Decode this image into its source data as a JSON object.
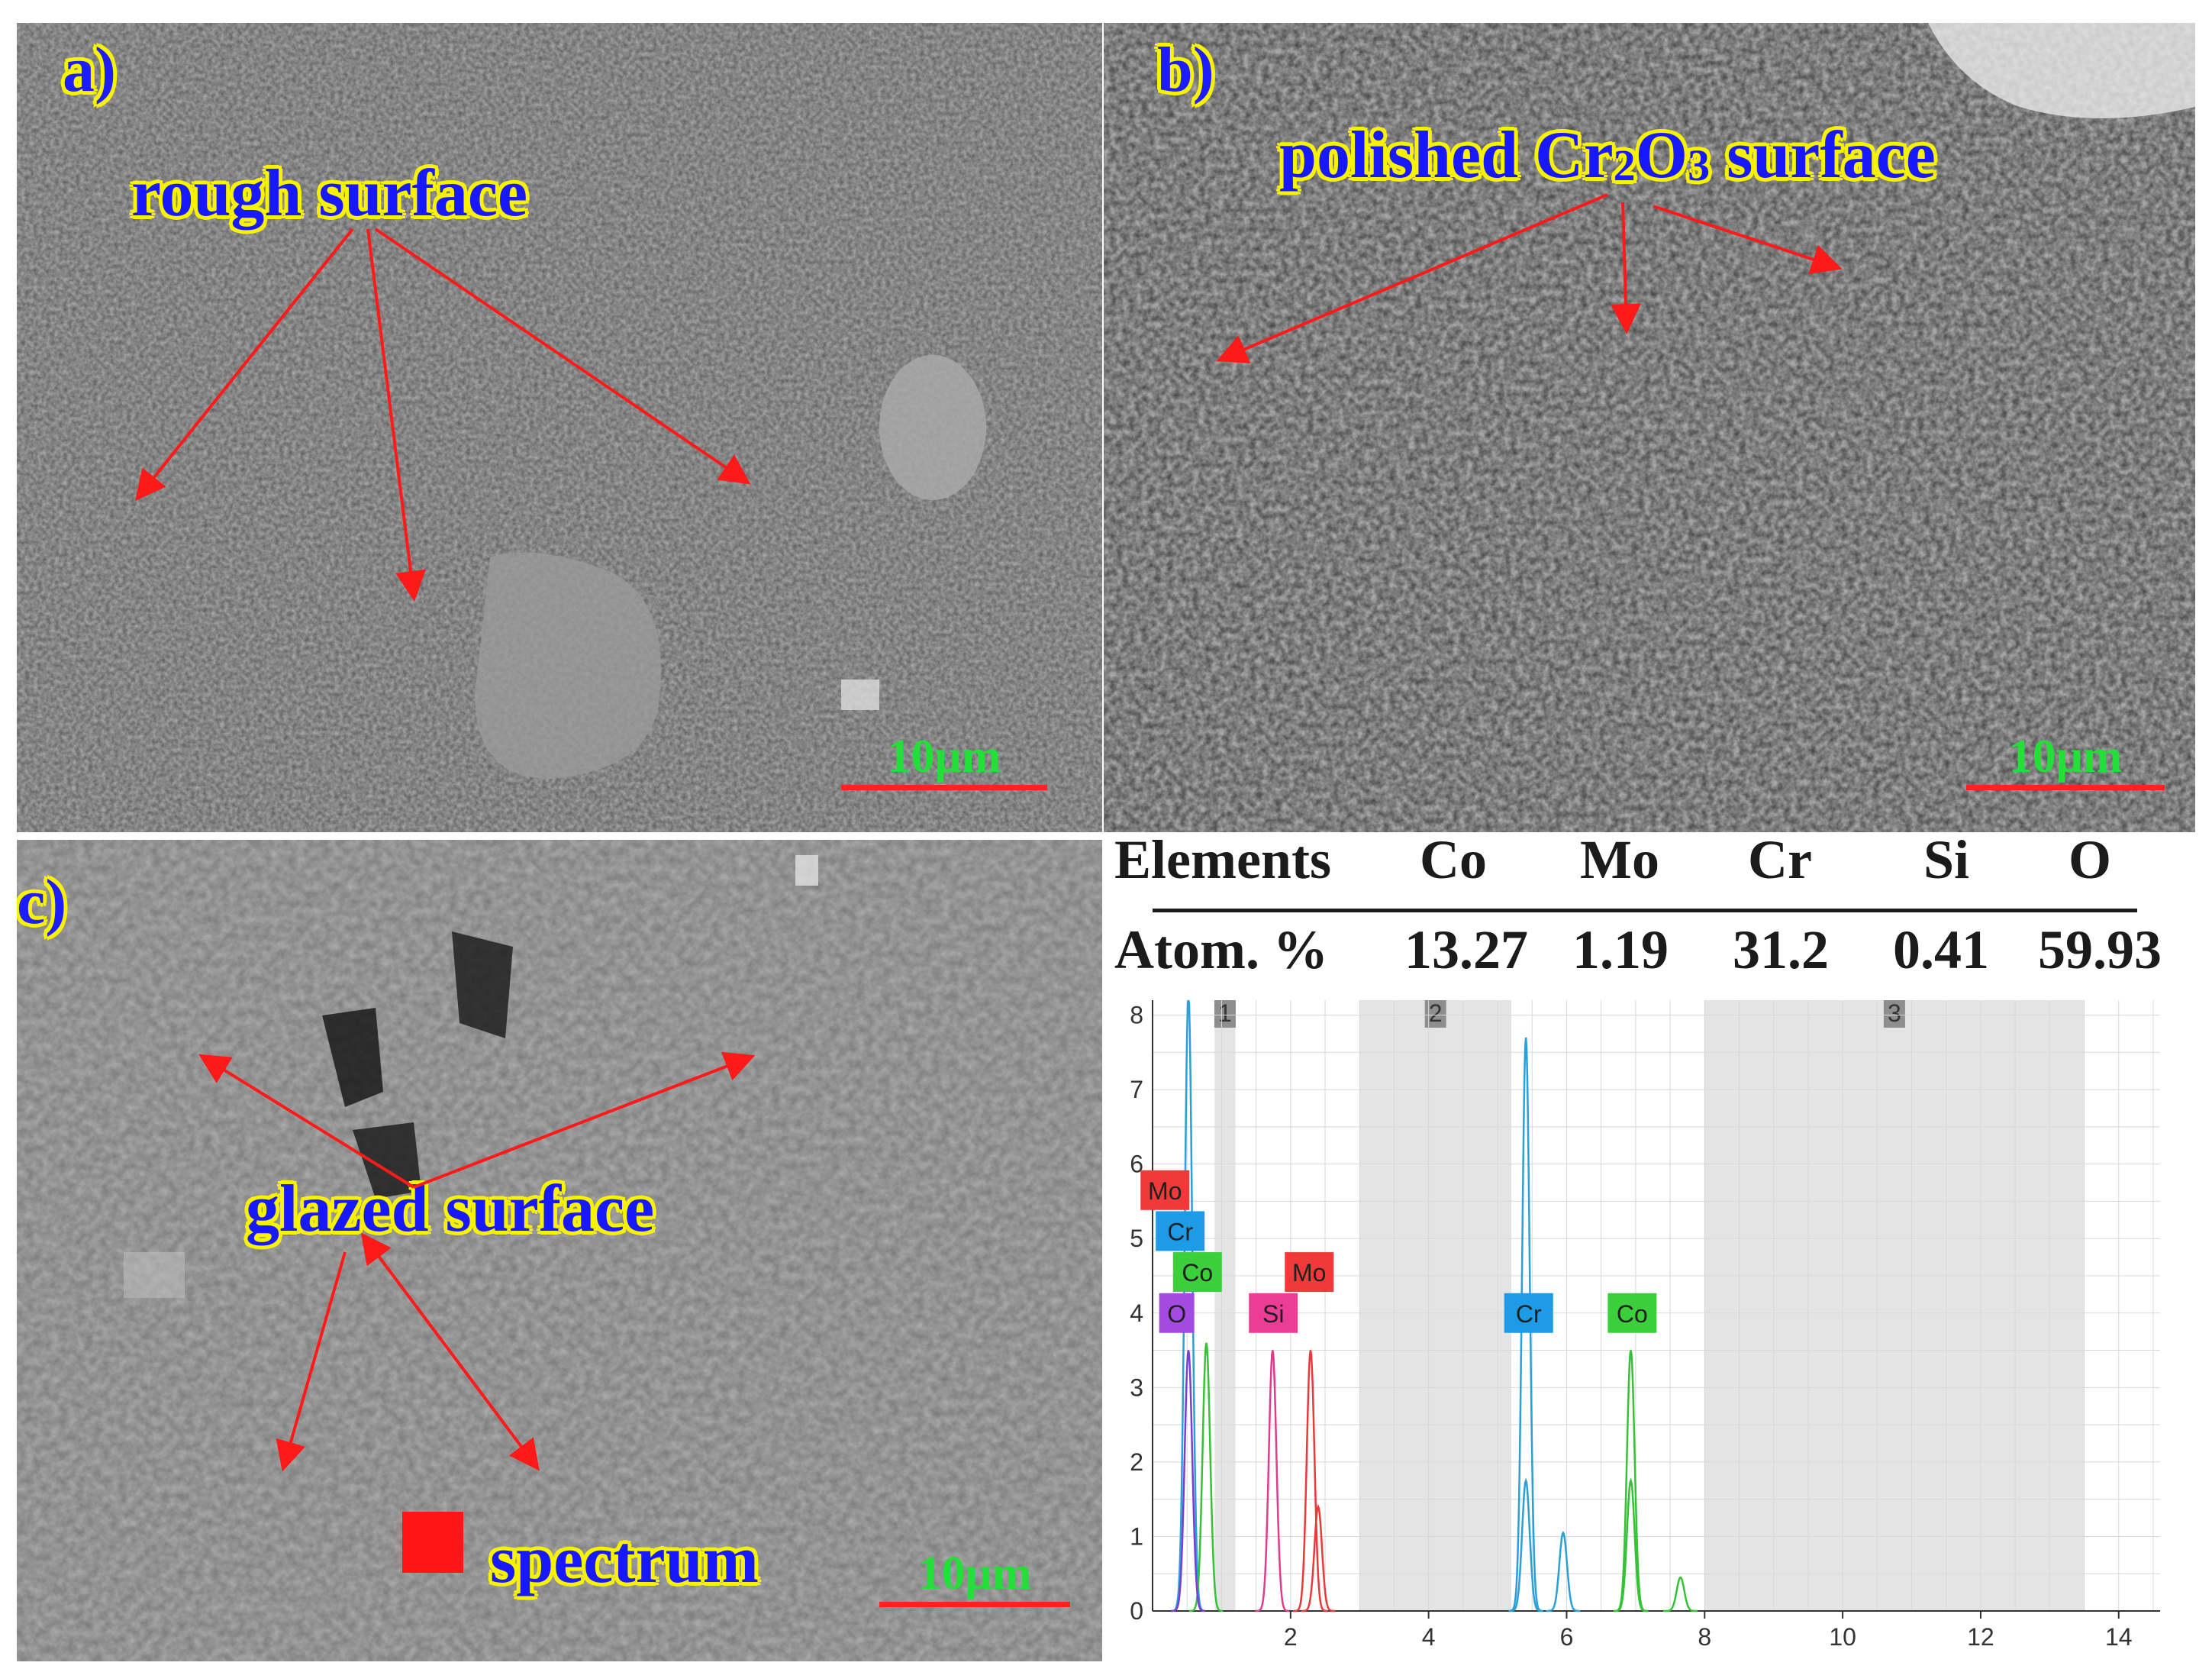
{
  "panels": {
    "a": {
      "label": "a)",
      "annotation": "rough surface",
      "scale": "10μm"
    },
    "b": {
      "label": "b)",
      "annotation_main": "polished Cr",
      "annotation_sub1": "2",
      "annotation_mid": "O",
      "annotation_sub2": "3",
      "annotation_end": " surface",
      "scale": "10μm"
    },
    "c": {
      "label": "c)",
      "annotation": "glazed surface",
      "spectrum_label": "spectrum",
      "scale": "10μm"
    }
  },
  "table": {
    "row_header": "Elements",
    "row_value_header": "Atom. %",
    "elements": [
      "Co",
      "Mo",
      "Cr",
      "Si",
      "O"
    ],
    "atom_percent": [
      "13.27",
      "1.19",
      "31.2",
      "0.41",
      "59.93"
    ]
  },
  "spectrum": {
    "x_ticks": [
      "2",
      "4",
      "6",
      "8",
      "10",
      "12",
      "14"
    ],
    "y_ticks": [
      "0",
      "1",
      "2",
      "3",
      "4",
      "5",
      "6",
      "7",
      "8"
    ],
    "x_range": [
      0,
      14.6
    ],
    "y_range": [
      0,
      8.2
    ],
    "regions": [
      {
        "label": "1",
        "from": 0.9,
        "to": 1.2
      },
      {
        "label": "2",
        "from": 3.0,
        "to": 5.2
      },
      {
        "label": "3",
        "from": 8.0,
        "to": 13.5
      }
    ],
    "peak_tags": [
      {
        "text": "Mo",
        "color": "#f03a3a"
      },
      {
        "text": "Cr",
        "color": "#1e9be6"
      },
      {
        "text": "Co",
        "color": "#3ccf3c"
      },
      {
        "text": "O",
        "color": "#a34be0"
      },
      {
        "text": "Si",
        "color": "#ec3d96"
      },
      {
        "text": "Mo",
        "color": "#f03a3a"
      },
      {
        "text": "Cr",
        "color": "#1e9be6"
      },
      {
        "text": "Co",
        "color": "#3ccf3c"
      }
    ],
    "series": [
      {
        "element": "Cr",
        "color": "#2a9fd8",
        "peaks": [
          [
            0.52,
            8.3
          ],
          [
            5.41,
            7.7
          ],
          [
            5.95,
            1.05
          ]
        ]
      },
      {
        "element": "Co",
        "color": "#36c236",
        "peaks": [
          [
            0.78,
            3.6
          ],
          [
            6.93,
            3.5
          ],
          [
            7.65,
            0.45
          ]
        ]
      },
      {
        "element": "O",
        "color": "#7a3fd0",
        "peaks": [
          [
            0.52,
            3.5
          ]
        ]
      },
      {
        "element": "Si",
        "color": "#e23a8c",
        "peaks": [
          [
            1.74,
            3.5
          ]
        ]
      },
      {
        "element": "Mo",
        "color": "#e83a3a",
        "peaks": [
          [
            2.29,
            3.5
          ],
          [
            2.4,
            1.4
          ]
        ]
      },
      {
        "element": "Co-actual",
        "color": "#36c236",
        "peaks": [
          [
            6.93,
            1.75
          ]
        ]
      },
      {
        "element": "Cr-actual",
        "color": "#2a9fd8",
        "peaks": [
          [
            5.41,
            1.75
          ]
        ]
      }
    ]
  }
}
